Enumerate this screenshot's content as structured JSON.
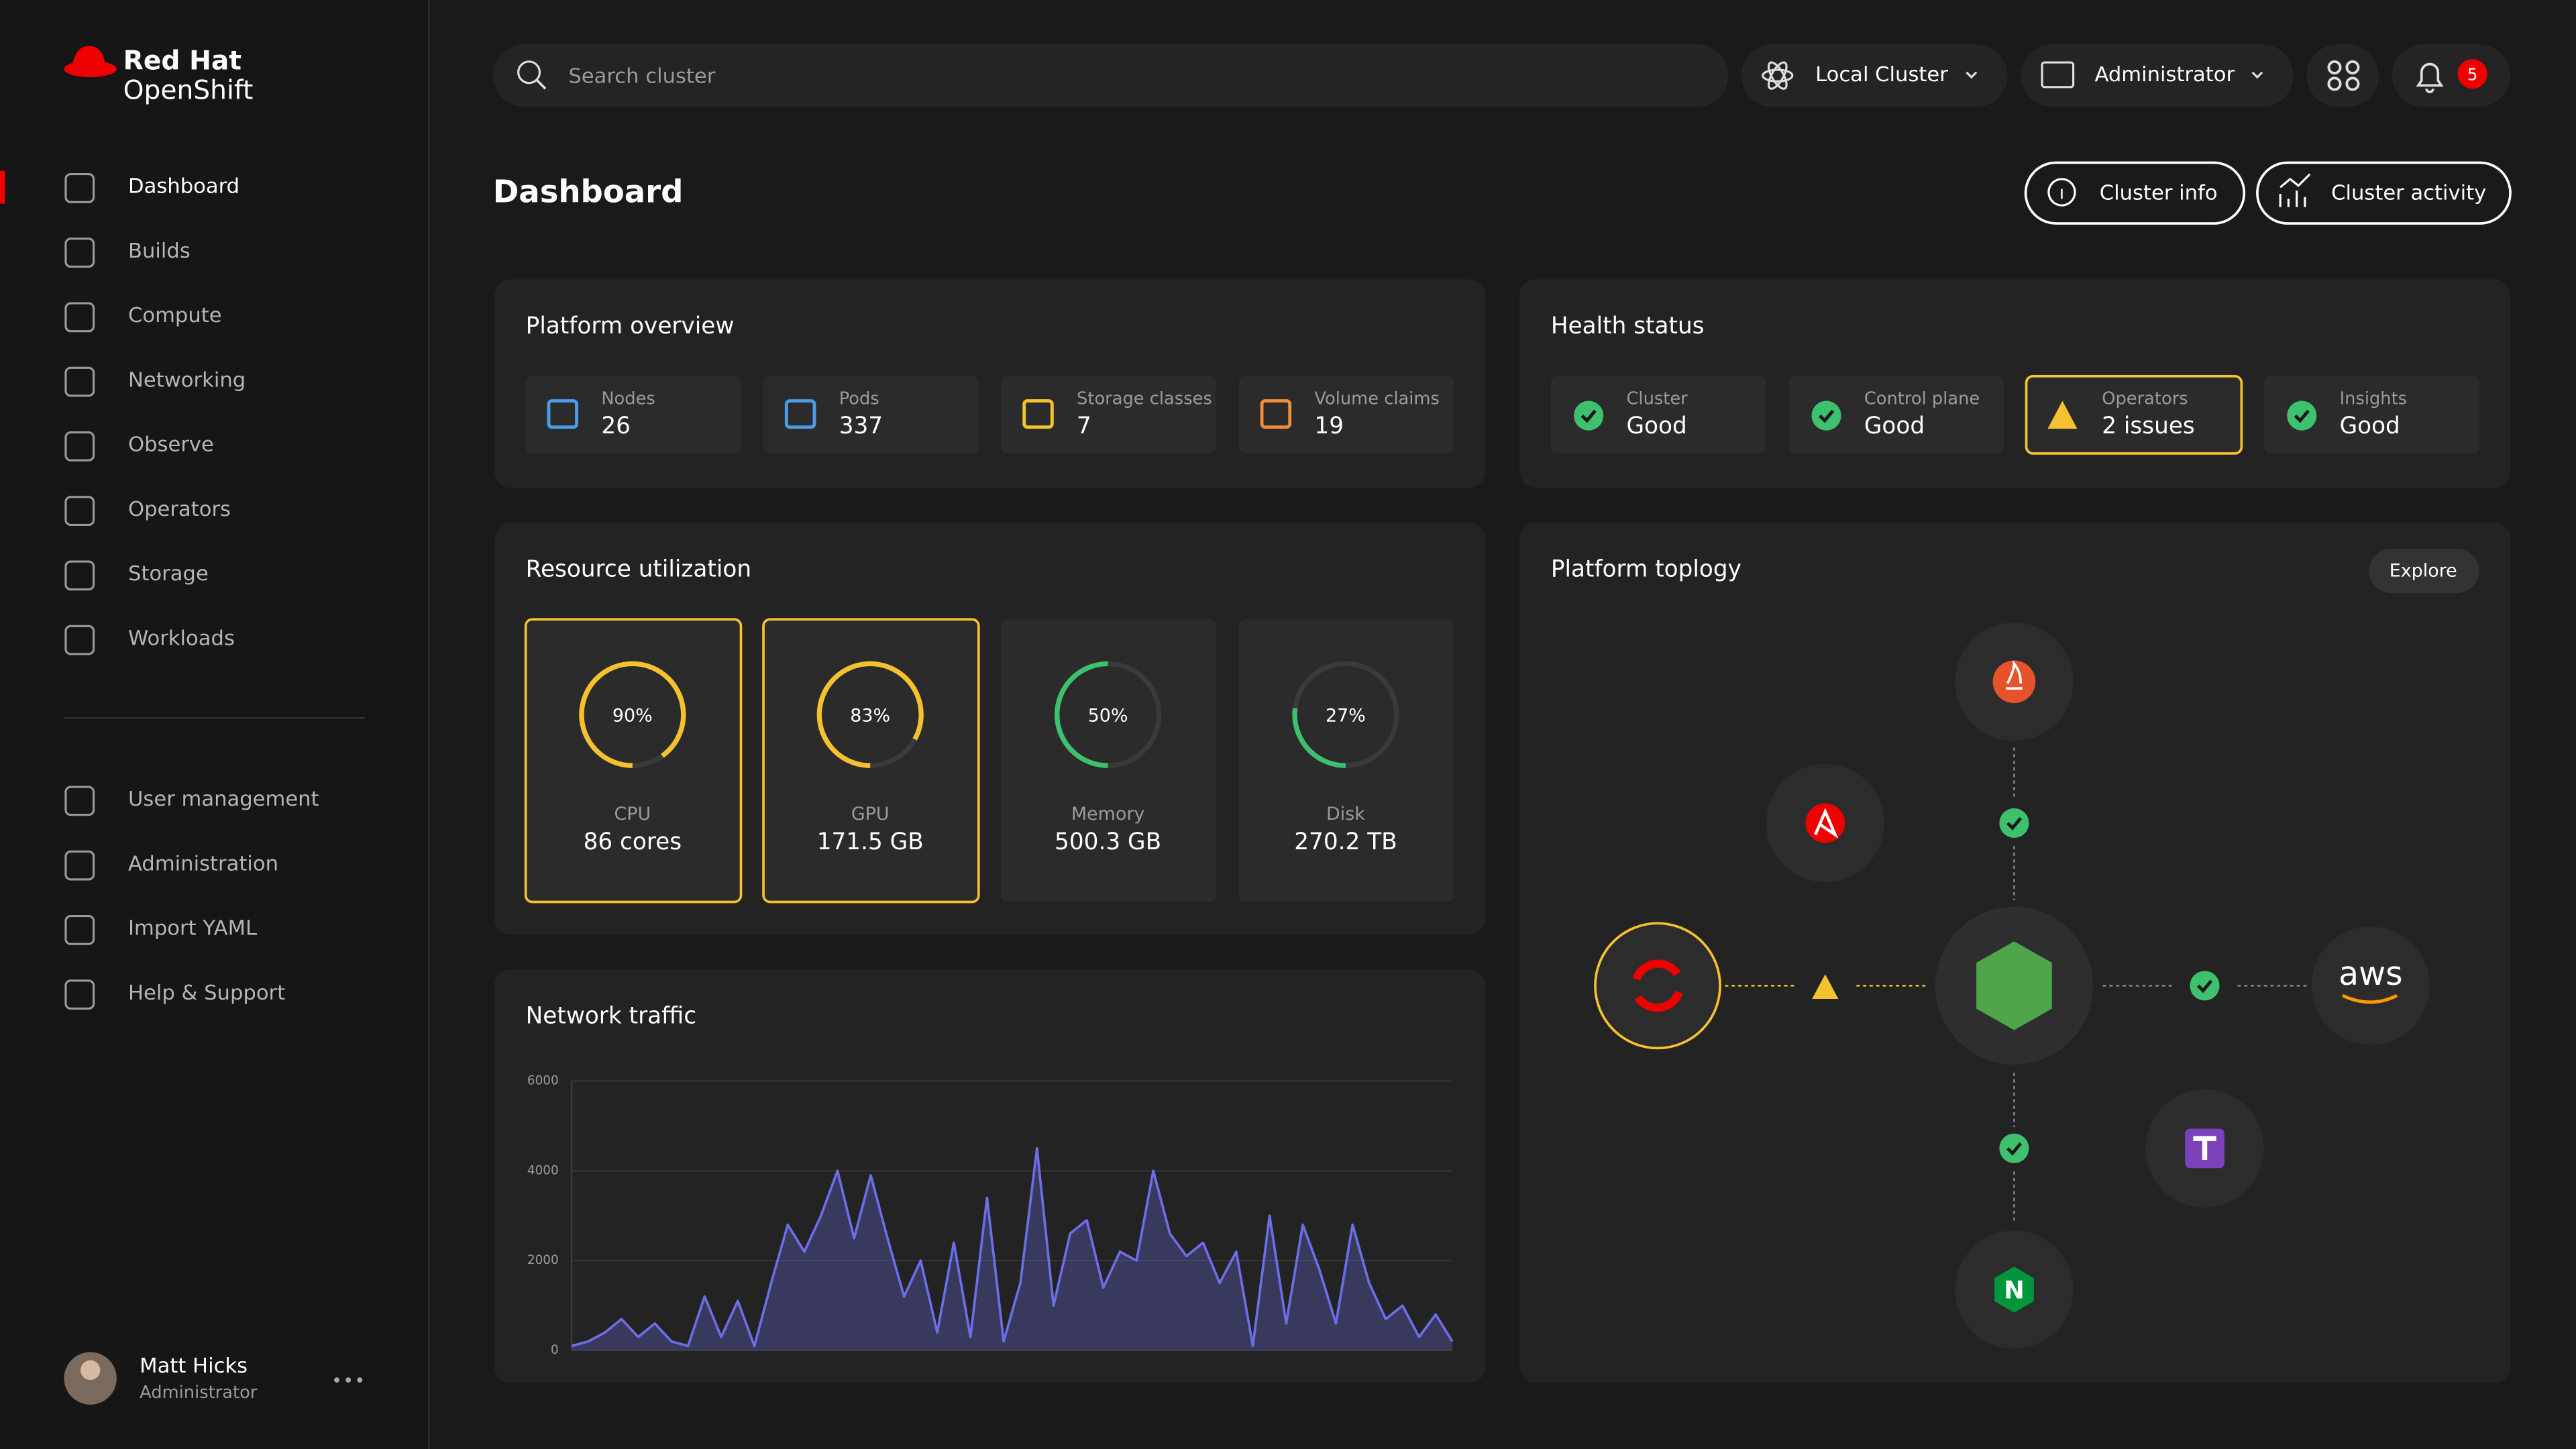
{
  "brand": {
    "line1": "Red Hat",
    "line2": "OpenShift"
  },
  "nav": [
    "Dashboard",
    "Builds",
    "Compute",
    "Networking",
    "Observe",
    "Operators",
    "Storage",
    "Workloads"
  ],
  "nav2": [
    "User management",
    "Administration",
    "Import YAML",
    "Help & Support"
  ],
  "user": {
    "name": "Matt Hicks",
    "role": "Administrator"
  },
  "header": {
    "search": "Search cluster",
    "cluster": "Local Cluster",
    "role": "Administrator",
    "notifications": 5
  },
  "page": {
    "title": "Dashboard",
    "buttons": [
      "Cluster info",
      "Cluster activity"
    ]
  },
  "overview": {
    "title": "Platform overview",
    "items": [
      {
        "label": "Nodes",
        "value": 26,
        "color": "#4a9de8"
      },
      {
        "label": "Pods",
        "value": 337,
        "color": "#4a9de8"
      },
      {
        "label": "Storage classes",
        "value": 7,
        "color": "#f5c12e"
      },
      {
        "label": "Volume claims",
        "value": 19,
        "color": "#f08c3a"
      }
    ]
  },
  "health": {
    "title": "Health status",
    "items": [
      {
        "label": "Cluster",
        "status": "Good",
        "highlighted": false
      },
      {
        "label": "Control plane",
        "status": "Good",
        "highlighted": false
      },
      {
        "label": "Operators",
        "status": "2 issues",
        "highlighted": true
      },
      {
        "label": "Insights",
        "status": "Good",
        "highlighted": false
      }
    ]
  },
  "resources": {
    "title": "Resource utilization",
    "items": [
      {
        "label": "CPU",
        "value": 90,
        "value_label": "90%",
        "amount": "86 cores",
        "color": "#f5c12e",
        "highlighted": true
      },
      {
        "label": "GPU",
        "value": 83,
        "value_label": "83%",
        "amount": "171.5 GB",
        "color": "#f5c12e",
        "highlighted": true
      },
      {
        "label": "Memory",
        "value": 50,
        "value_label": "50%",
        "amount": "500.3 GB",
        "color": "#3ec16f",
        "highlighted": false
      },
      {
        "label": "Disk",
        "value": 27,
        "value_label": "27%",
        "amount": "270.2 TB",
        "color": "#3ec16f",
        "highlighted": false
      }
    ]
  },
  "chart_data": {
    "type": "line",
    "title": "Network traffic",
    "values": [
      100,
      200,
      400,
      700,
      300,
      600,
      200,
      100,
      1200,
      300,
      1100,
      100,
      1500,
      2800,
      2200,
      3000,
      4000,
      2500,
      3900,
      2500,
      1200,
      2000,
      400,
      2400,
      300,
      3400,
      200,
      1500,
      4500,
      1000,
      2600,
      2900,
      1400,
      2200,
      2000,
      4000,
      2600,
      2100,
      2400,
      1500,
      2200,
      100,
      3000,
      600,
      2800,
      1800,
      600,
      2800,
      1500,
      700,
      1000,
      300,
      800,
      200
    ],
    "color": "#6b6ee6",
    "ylim": [
      0,
      6000
    ],
    "yticks": [
      0,
      2000,
      4000,
      6000
    ],
    "grid": true
  },
  "topology": {
    "title": "Platform toplogy",
    "explore": "Explore",
    "aws": "aws",
    "nginx": "N"
  }
}
